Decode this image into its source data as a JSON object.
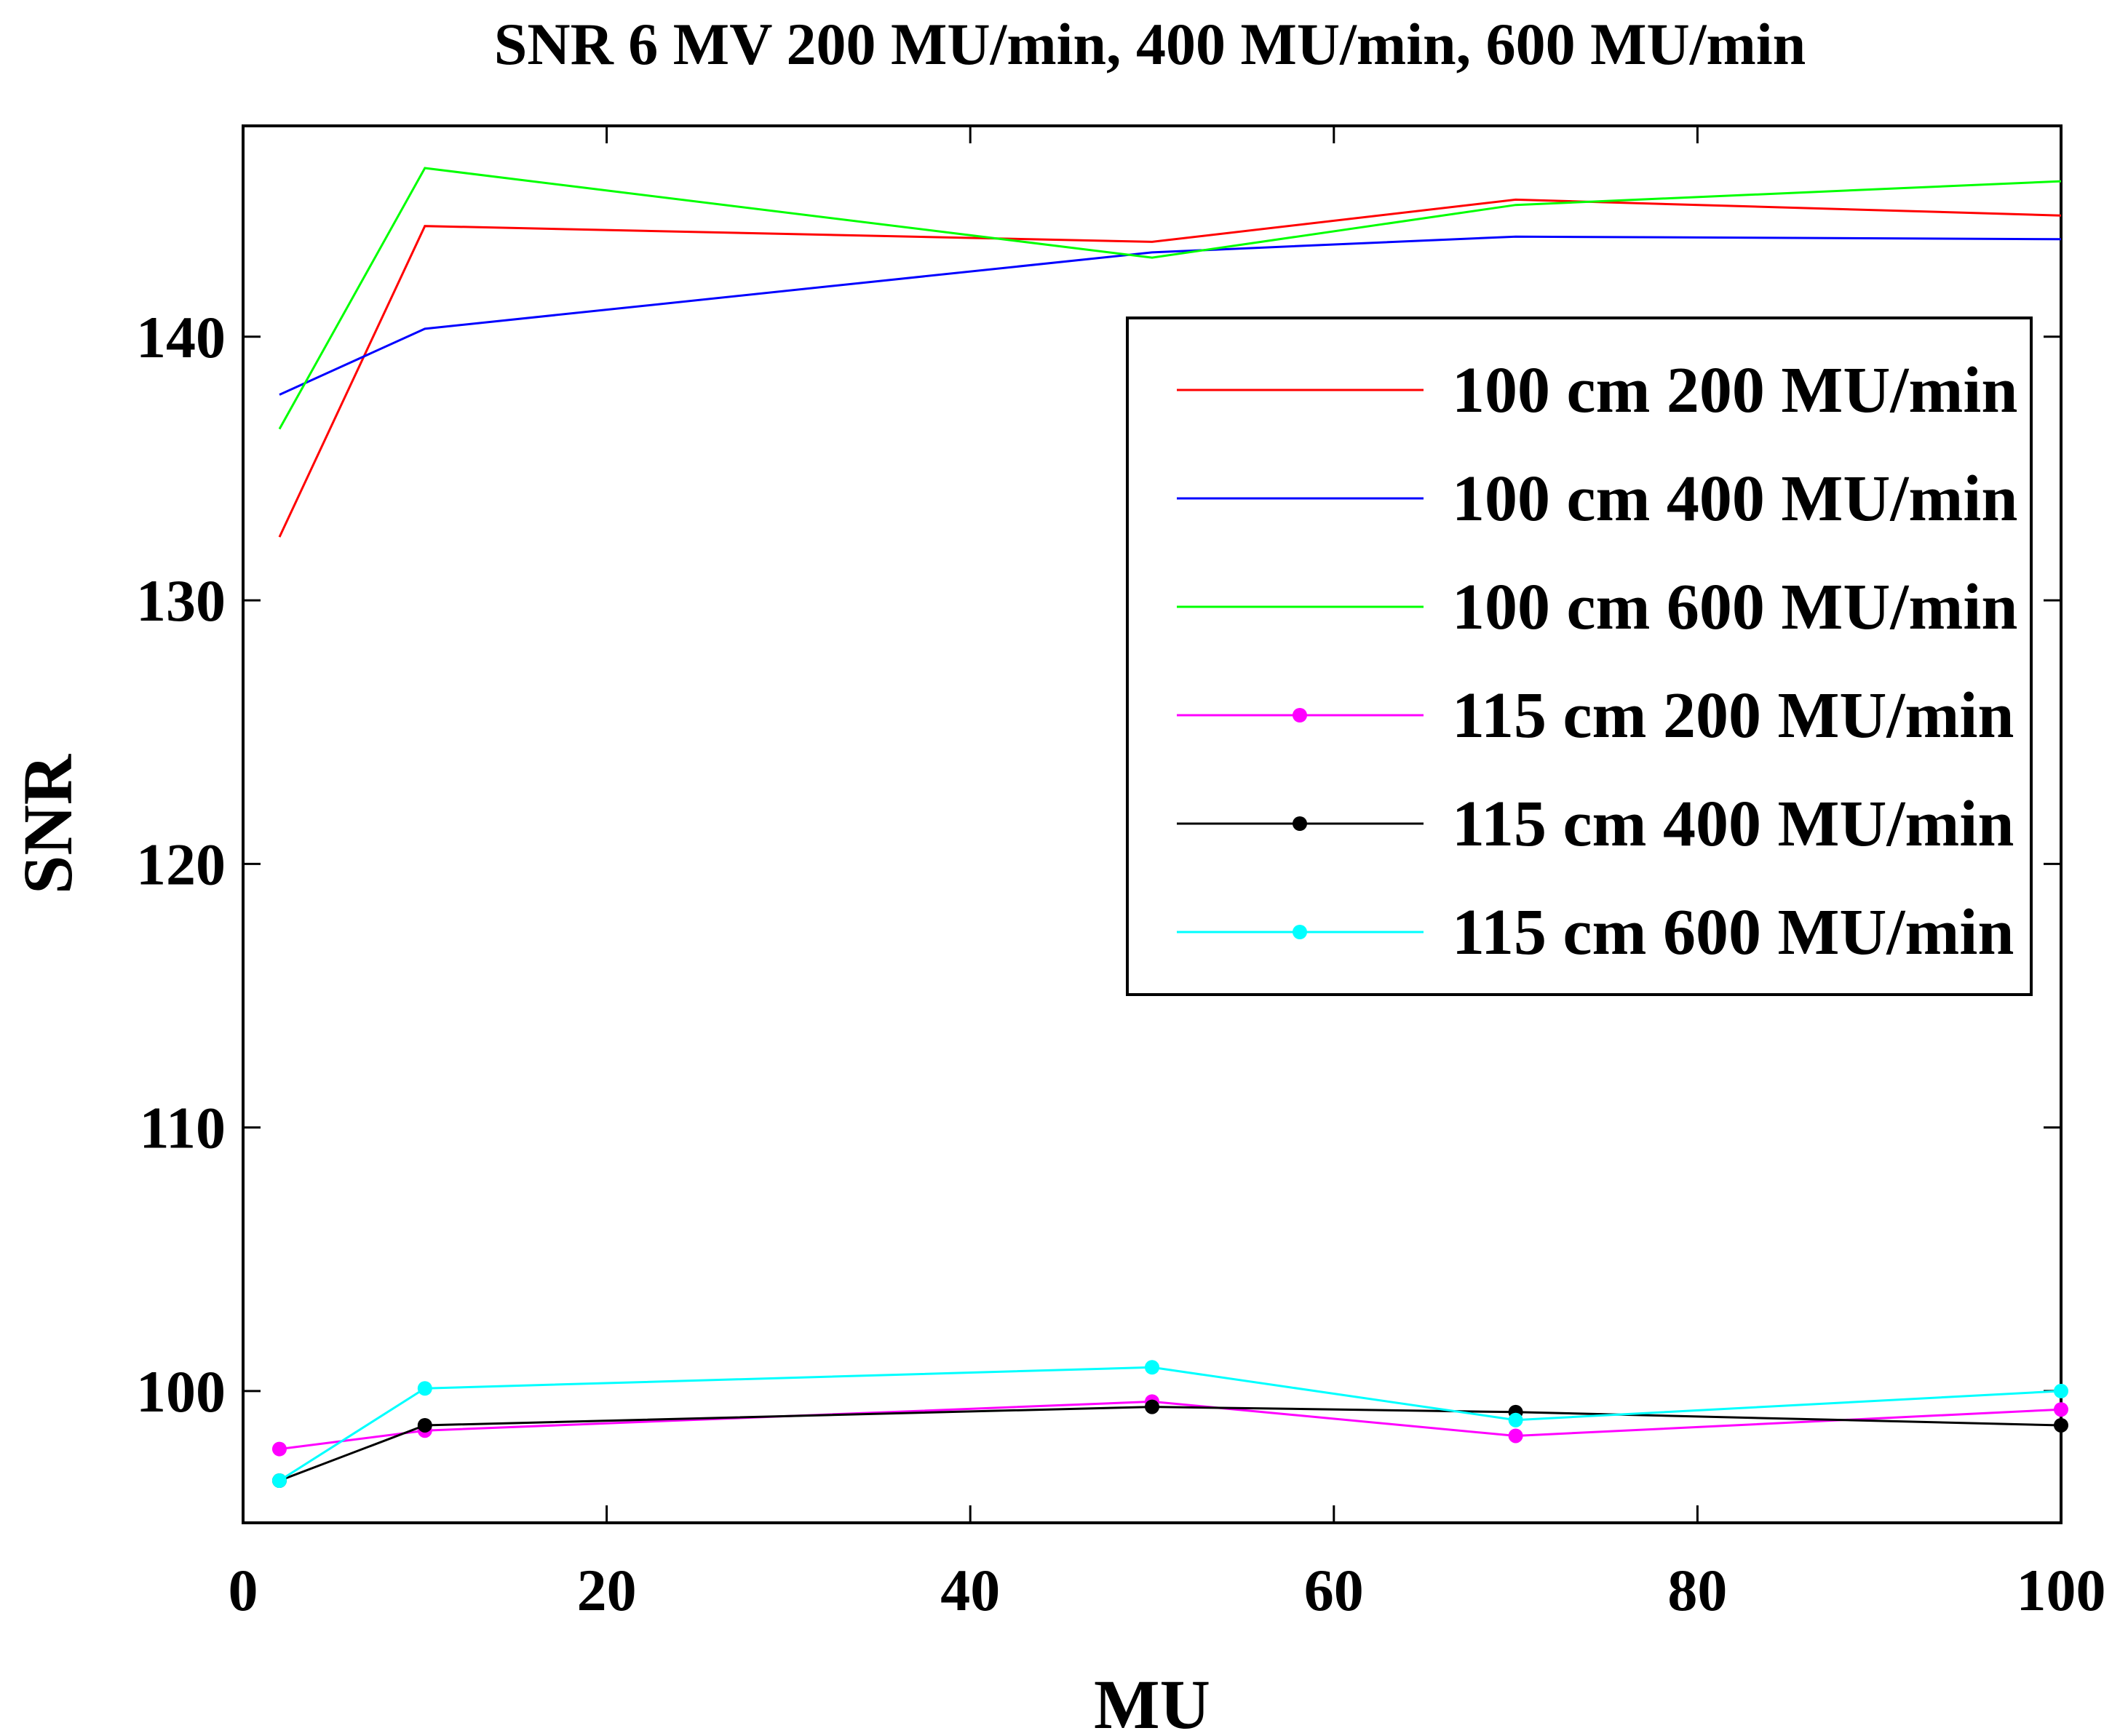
{
  "chart_data": {
    "type": "line",
    "title": "SNR 6 MV 200 MU/min, 400 MU/min, 600 MU/min",
    "xlabel": "MU",
    "ylabel": "SNR",
    "xlim": [
      0,
      100
    ],
    "ylim": [
      95,
      148
    ],
    "xticks": [
      0,
      20,
      40,
      60,
      80,
      100
    ],
    "xtick_labels": [
      "0",
      "20",
      "40",
      "60",
      "80",
      "100"
    ],
    "yticks": [
      100,
      110,
      120,
      130,
      140
    ],
    "ytick_labels": [
      "100",
      "110",
      "120",
      "130",
      "140"
    ],
    "grid": false,
    "legend_position": "top-right",
    "x": [
      2,
      10,
      50,
      70,
      100
    ],
    "series": [
      {
        "name": "100 cm 200 MU/min",
        "color": "#ff0000",
        "marker": false,
        "values": [
          132.4,
          144.2,
          143.6,
          145.2,
          144.6
        ]
      },
      {
        "name": "100 cm 400 MU/min",
        "color": "#0000ff",
        "marker": false,
        "values": [
          137.8,
          140.3,
          143.2,
          143.8,
          143.7
        ]
      },
      {
        "name": "100 cm 600 MU/min",
        "color": "#00ff00",
        "marker": false,
        "values": [
          136.5,
          146.4,
          143.0,
          145.0,
          145.9
        ]
      },
      {
        "name": "115 cm 200 MU/min",
        "color": "#ff00ff",
        "marker": true,
        "values": [
          97.8,
          98.5,
          99.6,
          98.3,
          99.3
        ]
      },
      {
        "name": "115 cm 400 MU/min",
        "color": "#000000",
        "marker": true,
        "values": [
          96.6,
          98.7,
          99.4,
          99.2,
          98.7
        ]
      },
      {
        "name": "115 cm 600 MU/min",
        "color": "#00ffff",
        "marker": true,
        "values": [
          96.6,
          100.1,
          100.9,
          98.9,
          100.0
        ]
      }
    ]
  }
}
